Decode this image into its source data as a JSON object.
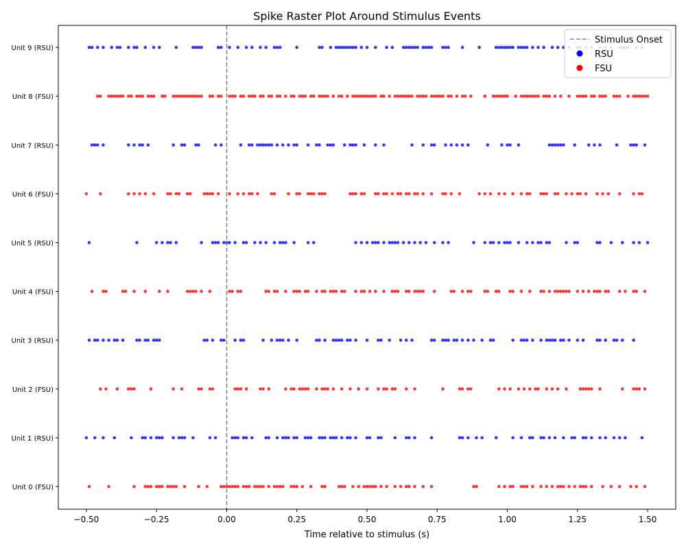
{
  "chart_data": {
    "type": "scatter",
    "title": "Spike Raster Plot Around Stimulus Events",
    "xlabel": "Time relative to stimulus (s)",
    "ylabel": "",
    "xlim": [
      -0.6,
      1.6
    ],
    "xticks": [
      -0.5,
      -0.25,
      0.0,
      0.25,
      0.5,
      0.75,
      1.0,
      1.25,
      1.5
    ],
    "xtick_labels": [
      "−0.50",
      "−0.25",
      "0.00",
      "0.25",
      "0.50",
      "0.75",
      "1.00",
      "1.25",
      "1.50"
    ],
    "grid": false,
    "legend_position": "top-right",
    "stimulus_line": {
      "x": 0.0,
      "label": "Stimulus Onset",
      "color": "#808080",
      "style": "dashed"
    },
    "legend": [
      {
        "label": "Stimulus Onset",
        "kind": "line",
        "color": "#808080"
      },
      {
        "label": "RSU",
        "kind": "marker",
        "color": "#0000ff"
      },
      {
        "label": "FSU",
        "kind": "marker",
        "color": "#ff0000"
      }
    ],
    "series": [
      {
        "name": "Unit 0 (FSU)",
        "color": "#ff0000",
        "x": [
          -0.49,
          -0.42,
          -0.33,
          -0.29,
          -0.28,
          -0.27,
          -0.25,
          -0.24,
          -0.23,
          -0.21,
          -0.2,
          -0.19,
          -0.18,
          -0.15,
          -0.1,
          -0.07,
          -0.02,
          -0.01,
          0.0,
          0.01,
          0.02,
          0.03,
          0.04,
          0.06,
          0.07,
          0.08,
          0.1,
          0.11,
          0.12,
          0.13,
          0.15,
          0.17,
          0.18,
          0.19,
          0.2,
          0.23,
          0.24,
          0.25,
          0.27,
          0.3,
          0.34,
          0.35,
          0.4,
          0.41,
          0.42,
          0.45,
          0.47,
          0.49,
          0.5,
          0.51,
          0.52,
          0.53,
          0.55,
          0.57,
          0.6,
          0.62,
          0.64,
          0.65,
          0.67,
          0.7,
          0.73,
          0.88,
          0.89,
          0.97,
          0.99,
          1.01,
          1.02,
          1.05,
          1.06,
          1.07,
          1.09,
          1.12,
          1.14,
          1.16,
          1.18,
          1.19,
          1.2,
          1.22,
          1.24,
          1.26,
          1.27,
          1.28,
          1.3,
          1.34,
          1.37,
          1.4,
          1.44,
          1.46,
          1.49
        ]
      },
      {
        "name": "Unit 1 (RSU)",
        "color": "#0000ff",
        "x": [
          -0.5,
          -0.47,
          -0.44,
          -0.4,
          -0.34,
          -0.3,
          -0.29,
          -0.27,
          -0.25,
          -0.24,
          -0.23,
          -0.19,
          -0.17,
          -0.16,
          -0.15,
          -0.12,
          -0.06,
          -0.04,
          0.02,
          0.03,
          0.04,
          0.06,
          0.07,
          0.09,
          0.14,
          0.15,
          0.18,
          0.2,
          0.21,
          0.22,
          0.24,
          0.25,
          0.28,
          0.29,
          0.3,
          0.33,
          0.34,
          0.35,
          0.37,
          0.38,
          0.39,
          0.41,
          0.43,
          0.44,
          0.46,
          0.5,
          0.51,
          0.54,
          0.55,
          0.6,
          0.64,
          0.65,
          0.67,
          0.73,
          0.83,
          0.84,
          0.86,
          0.89,
          0.91,
          0.96,
          1.02,
          1.05,
          1.08,
          1.09,
          1.12,
          1.13,
          1.15,
          1.17,
          1.2,
          1.23,
          1.24,
          1.27,
          1.28,
          1.3,
          1.33,
          1.35,
          1.38,
          1.4,
          1.42,
          1.48
        ]
      },
      {
        "name": "Unit 2 (FSU)",
        "color": "#ff0000",
        "x": [
          -0.45,
          -0.43,
          -0.39,
          -0.35,
          -0.34,
          -0.33,
          -0.27,
          -0.19,
          -0.16,
          -0.1,
          -0.09,
          -0.06,
          -0.05,
          0.03,
          0.04,
          0.05,
          0.07,
          0.12,
          0.13,
          0.15,
          0.21,
          0.23,
          0.24,
          0.26,
          0.27,
          0.28,
          0.29,
          0.32,
          0.34,
          0.35,
          0.36,
          0.38,
          0.41,
          0.44,
          0.47,
          0.5,
          0.54,
          0.56,
          0.57,
          0.59,
          0.6,
          0.64,
          0.67,
          0.77,
          0.83,
          0.84,
          0.86,
          0.87,
          0.97,
          0.99,
          1.01,
          1.04,
          1.06,
          1.08,
          1.1,
          1.11,
          1.14,
          1.16,
          1.18,
          1.21,
          1.26,
          1.27,
          1.28,
          1.29,
          1.3,
          1.33,
          1.41,
          1.45,
          1.46,
          1.47,
          1.49
        ]
      },
      {
        "name": "Unit 3 (RSU)",
        "color": "#0000ff",
        "x": [
          -0.49,
          -0.47,
          -0.46,
          -0.44,
          -0.42,
          -0.4,
          -0.39,
          -0.37,
          -0.32,
          -0.31,
          -0.29,
          -0.28,
          -0.26,
          -0.25,
          -0.24,
          -0.08,
          -0.07,
          -0.05,
          -0.02,
          -0.01,
          0.03,
          0.05,
          0.06,
          0.13,
          0.16,
          0.18,
          0.19,
          0.2,
          0.22,
          0.25,
          0.32,
          0.33,
          0.35,
          0.38,
          0.39,
          0.4,
          0.41,
          0.43,
          0.44,
          0.46,
          0.5,
          0.54,
          0.55,
          0.58,
          0.62,
          0.64,
          0.66,
          0.73,
          0.74,
          0.77,
          0.78,
          0.79,
          0.81,
          0.82,
          0.84,
          0.86,
          0.88,
          0.91,
          0.94,
          0.95,
          1.02,
          1.05,
          1.06,
          1.07,
          1.09,
          1.12,
          1.14,
          1.15,
          1.16,
          1.17,
          1.19,
          1.2,
          1.22,
          1.25,
          1.27,
          1.32,
          1.33,
          1.35,
          1.38,
          1.39,
          1.41,
          1.45
        ]
      },
      {
        "name": "Unit 4 (FSU)",
        "color": "#ff0000",
        "x": [
          -0.48,
          -0.44,
          -0.43,
          -0.37,
          -0.36,
          -0.33,
          -0.29,
          -0.24,
          -0.21,
          -0.14,
          -0.13,
          -0.12,
          -0.11,
          -0.09,
          -0.06,
          0.01,
          0.02,
          0.04,
          0.05,
          0.14,
          0.15,
          0.17,
          0.18,
          0.21,
          0.24,
          0.25,
          0.26,
          0.28,
          0.29,
          0.32,
          0.34,
          0.35,
          0.37,
          0.38,
          0.39,
          0.41,
          0.42,
          0.46,
          0.48,
          0.49,
          0.51,
          0.53,
          0.56,
          0.59,
          0.6,
          0.61,
          0.64,
          0.65,
          0.67,
          0.68,
          0.69,
          0.7,
          0.74,
          0.8,
          0.81,
          0.84,
          0.86,
          0.87,
          0.92,
          0.93,
          0.96,
          0.97,
          1.01,
          1.02,
          1.05,
          1.08,
          1.12,
          1.13,
          1.15,
          1.17,
          1.18,
          1.19,
          1.2,
          1.21,
          1.22,
          1.25,
          1.27,
          1.29,
          1.31,
          1.32,
          1.33,
          1.35,
          1.36,
          1.4,
          1.42,
          1.45,
          1.46,
          1.49
        ]
      },
      {
        "name": "Unit 5 (RSU)",
        "color": "#0000ff",
        "x": [
          -0.49,
          -0.32,
          -0.25,
          -0.23,
          -0.21,
          -0.2,
          -0.18,
          -0.09,
          -0.05,
          -0.04,
          -0.03,
          -0.01,
          0.0,
          0.01,
          0.03,
          0.06,
          0.07,
          0.1,
          0.12,
          0.14,
          0.17,
          0.19,
          0.2,
          0.21,
          0.24,
          0.29,
          0.31,
          0.46,
          0.48,
          0.5,
          0.52,
          0.53,
          0.54,
          0.56,
          0.58,
          0.59,
          0.6,
          0.61,
          0.63,
          0.65,
          0.67,
          0.69,
          0.71,
          0.74,
          0.77,
          0.79,
          0.88,
          0.92,
          0.94,
          0.95,
          0.97,
          0.99,
          1.0,
          1.01,
          1.04,
          1.07,
          1.09,
          1.11,
          1.12,
          1.14,
          1.15,
          1.21,
          1.24,
          1.25,
          1.32,
          1.33,
          1.37,
          1.41,
          1.45,
          1.47,
          1.5
        ]
      },
      {
        "name": "Unit 6 (FSU)",
        "color": "#ff0000",
        "x": [
          -0.5,
          -0.45,
          -0.35,
          -0.33,
          -0.31,
          -0.29,
          -0.26,
          -0.21,
          -0.2,
          -0.18,
          -0.17,
          -0.14,
          -0.13,
          -0.08,
          -0.07,
          -0.06,
          -0.05,
          -0.03,
          0.01,
          0.04,
          0.06,
          0.08,
          0.09,
          0.11,
          0.16,
          0.17,
          0.22,
          0.25,
          0.26,
          0.29,
          0.3,
          0.31,
          0.33,
          0.34,
          0.35,
          0.44,
          0.45,
          0.46,
          0.48,
          0.49,
          0.53,
          0.54,
          0.56,
          0.57,
          0.59,
          0.61,
          0.62,
          0.64,
          0.65,
          0.67,
          0.68,
          0.7,
          0.73,
          0.77,
          0.78,
          0.8,
          0.83,
          0.9,
          0.92,
          0.94,
          0.97,
          0.99,
          1.02,
          1.05,
          1.07,
          1.08,
          1.12,
          1.13,
          1.14,
          1.17,
          1.18,
          1.21,
          1.23,
          1.25,
          1.26,
          1.28,
          1.32,
          1.34,
          1.36,
          1.4,
          1.45,
          1.47,
          1.48
        ]
      },
      {
        "name": "Unit 7 (RSU)",
        "color": "#0000ff",
        "x": [
          -0.48,
          -0.47,
          -0.46,
          -0.44,
          -0.35,
          -0.33,
          -0.31,
          -0.3,
          -0.28,
          -0.19,
          -0.16,
          -0.15,
          -0.11,
          -0.1,
          -0.04,
          -0.02,
          0.05,
          0.08,
          0.09,
          0.11,
          0.12,
          0.13,
          0.14,
          0.15,
          0.16,
          0.18,
          0.2,
          0.22,
          0.24,
          0.25,
          0.29,
          0.32,
          0.33,
          0.36,
          0.37,
          0.38,
          0.42,
          0.44,
          0.45,
          0.46,
          0.49,
          0.53,
          0.56,
          0.66,
          0.7,
          0.73,
          0.74,
          0.78,
          0.8,
          0.82,
          0.84,
          0.86,
          0.93,
          0.98,
          1.0,
          1.01,
          1.04,
          1.15,
          1.16,
          1.17,
          1.18,
          1.19,
          1.2,
          1.24,
          1.29,
          1.31,
          1.33,
          1.39,
          1.44,
          1.45,
          1.46,
          1.49
        ]
      },
      {
        "name": "Unit 8 (FSU)",
        "color": "#ff0000",
        "x": [
          -0.46,
          -0.45,
          -0.42,
          -0.41,
          -0.4,
          -0.39,
          -0.38,
          -0.37,
          -0.35,
          -0.34,
          -0.32,
          -0.31,
          -0.3,
          -0.28,
          -0.27,
          -0.26,
          -0.23,
          -0.22,
          -0.19,
          -0.18,
          -0.17,
          -0.16,
          -0.15,
          -0.14,
          -0.13,
          -0.12,
          -0.11,
          -0.1,
          -0.09,
          -0.06,
          -0.05,
          -0.03,
          -0.02,
          0.01,
          0.02,
          0.03,
          0.05,
          0.06,
          0.08,
          0.09,
          0.1,
          0.12,
          0.13,
          0.15,
          0.16,
          0.18,
          0.19,
          0.21,
          0.23,
          0.24,
          0.26,
          0.27,
          0.28,
          0.3,
          0.31,
          0.33,
          0.34,
          0.35,
          0.36,
          0.38,
          0.4,
          0.41,
          0.43,
          0.45,
          0.46,
          0.47,
          0.48,
          0.49,
          0.5,
          0.51,
          0.52,
          0.53,
          0.55,
          0.56,
          0.58,
          0.6,
          0.61,
          0.62,
          0.63,
          0.64,
          0.65,
          0.66,
          0.68,
          0.69,
          0.7,
          0.71,
          0.73,
          0.74,
          0.75,
          0.76,
          0.77,
          0.79,
          0.8,
          0.82,
          0.84,
          0.85,
          0.87,
          0.92,
          0.95,
          0.96,
          0.97,
          0.98,
          0.99,
          1.0,
          1.03,
          1.05,
          1.06,
          1.07,
          1.08,
          1.09,
          1.1,
          1.11,
          1.13,
          1.14,
          1.15,
          1.17,
          1.19,
          1.22,
          1.25,
          1.26,
          1.27,
          1.28,
          1.3,
          1.31,
          1.33,
          1.34,
          1.35,
          1.38,
          1.39,
          1.4,
          1.43,
          1.45,
          1.46,
          1.47,
          1.48,
          1.49,
          1.5
        ]
      },
      {
        "name": "Unit 9 (RSU)",
        "color": "#0000ff",
        "x": [
          -0.49,
          -0.48,
          -0.46,
          -0.44,
          -0.41,
          -0.39,
          -0.38,
          -0.35,
          -0.33,
          -0.32,
          -0.29,
          -0.26,
          -0.24,
          -0.18,
          -0.12,
          -0.11,
          -0.1,
          -0.09,
          -0.03,
          -0.02,
          0.01,
          0.04,
          0.07,
          0.09,
          0.12,
          0.14,
          0.17,
          0.18,
          0.19,
          0.25,
          0.33,
          0.34,
          0.37,
          0.39,
          0.4,
          0.41,
          0.42,
          0.43,
          0.44,
          0.45,
          0.46,
          0.48,
          0.5,
          0.53,
          0.57,
          0.59,
          0.63,
          0.64,
          0.65,
          0.66,
          0.67,
          0.68,
          0.7,
          0.71,
          0.72,
          0.73,
          0.77,
          0.78,
          0.79,
          0.84,
          0.9,
          0.96,
          0.97,
          0.98,
          0.99,
          1.0,
          1.01,
          1.02,
          1.04,
          1.05,
          1.06,
          1.07,
          1.09,
          1.11,
          1.13,
          1.16,
          1.18,
          1.2,
          1.22,
          1.25,
          1.26,
          1.28,
          1.3,
          1.33,
          1.35,
          1.37,
          1.4,
          1.41,
          1.42,
          1.43,
          1.46,
          1.48
        ]
      }
    ]
  }
}
